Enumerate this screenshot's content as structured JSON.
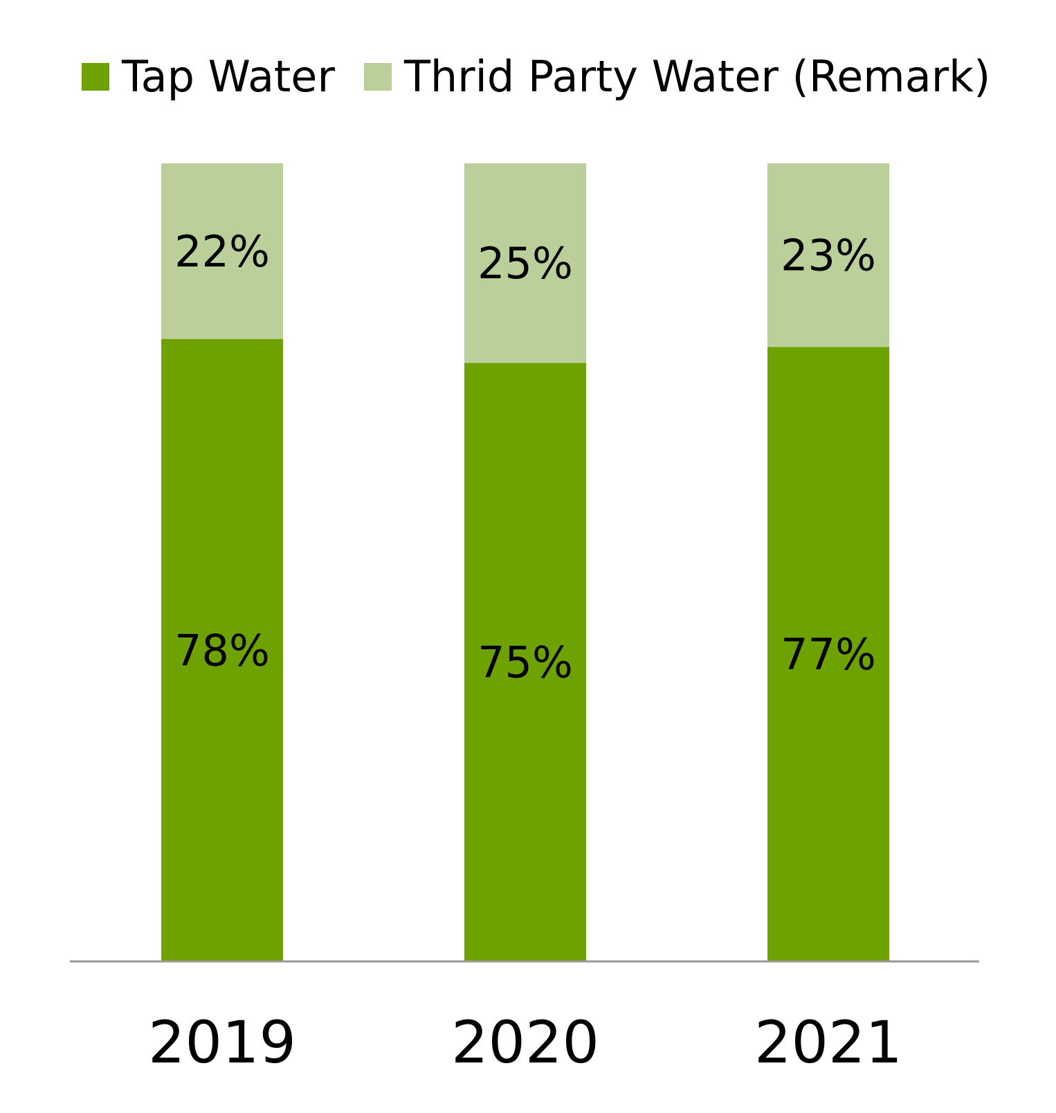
{
  "chart_data": {
    "type": "bar",
    "stacked": true,
    "categories": [
      "2019",
      "2020",
      "2021"
    ],
    "series": [
      {
        "name": "Tap Water",
        "values": [
          78,
          75,
          77
        ],
        "labels": [
          "78%",
          "75%",
          "77%"
        ],
        "color": "#6ea200"
      },
      {
        "name": "Thrid Party Water (Remark)",
        "values": [
          22,
          25,
          23
        ],
        "labels": [
          "22%",
          "25%",
          "23%"
        ],
        "color": "#bacf9a"
      }
    ],
    "ylim": [
      0,
      100
    ],
    "title": "",
    "xlabel": "",
    "ylabel": "",
    "legend": "top",
    "grid": false,
    "axis_color": "#999999"
  }
}
